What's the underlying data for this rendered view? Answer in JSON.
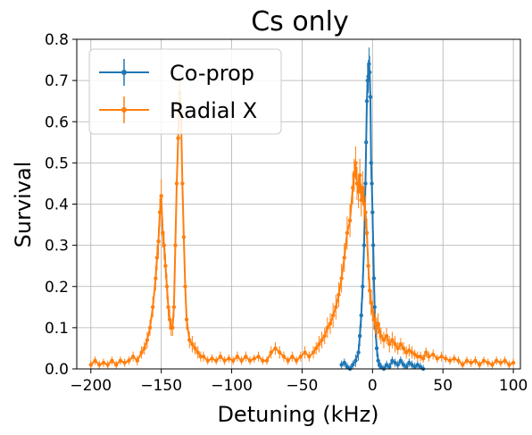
{
  "chart_data": {
    "type": "line",
    "title": "Cs only",
    "xlabel": "Detuning (kHz)",
    "ylabel": "Survival",
    "xlim": [
      -210,
      105
    ],
    "ylim": [
      0,
      0.8
    ],
    "xticks": [
      -200,
      -150,
      -100,
      -50,
      0,
      50,
      100
    ],
    "yticks": [
      0.0,
      0.1,
      0.2,
      0.3,
      0.4,
      0.5,
      0.6,
      0.7,
      0.8
    ],
    "xtick_labels": [
      "−200",
      "−150",
      "−100",
      "−50",
      "0",
      "50",
      "100"
    ],
    "ytick_labels": [
      "0.0",
      "0.1",
      "0.2",
      "0.3",
      "0.4",
      "0.5",
      "0.6",
      "0.7",
      "0.8"
    ],
    "grid": true,
    "legend_position": "top-left",
    "series": [
      {
        "name": "Co-prop",
        "color": "#1f77b4",
        "x": [
          -22,
          -20,
          -18,
          -16,
          -14,
          -12,
          -10,
          -9,
          -8,
          -7,
          -6,
          -5,
          -4.5,
          -4,
          -3.5,
          -3,
          -2.5,
          -2,
          -1.5,
          -1,
          -0.5,
          0,
          0.5,
          1,
          1.5,
          2,
          3,
          4,
          5,
          6,
          8,
          10,
          12,
          14,
          16,
          18,
          20,
          22,
          24,
          26,
          28,
          30,
          32,
          34,
          36
        ],
        "y": [
          0.01,
          0.015,
          0.005,
          0.0,
          0.01,
          0.02,
          0.04,
          0.08,
          0.13,
          0.2,
          0.3,
          0.45,
          0.55,
          0.65,
          0.7,
          0.71,
          0.74,
          0.72,
          0.66,
          0.5,
          0.45,
          0.38,
          0.3,
          0.22,
          0.15,
          0.1,
          0.05,
          0.02,
          0.01,
          0.005,
          0.0,
          0.01,
          0.005,
          0.02,
          0.015,
          0.01,
          0.02,
          0.01,
          0.005,
          0.015,
          0.01,
          0.005,
          0.01,
          0.005,
          0.0
        ],
        "err": [
          0.01,
          0.01,
          0.01,
          0.01,
          0.01,
          0.015,
          0.02,
          0.025,
          0.03,
          0.03,
          0.035,
          0.04,
          0.04,
          0.04,
          0.04,
          0.04,
          0.04,
          0.04,
          0.04,
          0.04,
          0.04,
          0.04,
          0.035,
          0.035,
          0.03,
          0.025,
          0.02,
          0.015,
          0.01,
          0.01,
          0.01,
          0.01,
          0.01,
          0.01,
          0.01,
          0.01,
          0.01,
          0.01,
          0.01,
          0.01,
          0.01,
          0.01,
          0.01,
          0.01,
          0.01
        ]
      },
      {
        "name": "Radial X",
        "color": "#ff7f0e",
        "x": [
          -200,
          -197,
          -194,
          -191,
          -188,
          -185,
          -182,
          -179,
          -176,
          -173,
          -170,
          -167,
          -164,
          -162,
          -160,
          -158,
          -156,
          -154,
          -153,
          -152,
          -151,
          -150,
          -149,
          -148,
          -147,
          -146,
          -145,
          -144,
          -143,
          -142,
          -141,
          -140,
          -139,
          -138,
          -137,
          -136,
          -135,
          -134,
          -133,
          -132,
          -130,
          -128,
          -126,
          -124,
          -122,
          -120,
          -117,
          -114,
          -111,
          -108,
          -105,
          -102,
          -99,
          -96,
          -93,
          -90,
          -87,
          -84,
          -81,
          -78,
          -75,
          -72,
          -69,
          -66,
          -63,
          -60,
          -57,
          -54,
          -51,
          -48,
          -45,
          -42,
          -40,
          -38,
          -36,
          -34,
          -32,
          -30,
          -28,
          -26,
          -24,
          -22,
          -20,
          -18,
          -16,
          -14,
          -13,
          -12,
          -11,
          -10,
          -9,
          -8,
          -7,
          -6,
          -5,
          -4,
          -3,
          -2,
          -1,
          0,
          1,
          2,
          3,
          4,
          5,
          6,
          8,
          10,
          12,
          14,
          16,
          18,
          20,
          22,
          24,
          26,
          28,
          30,
          32,
          34,
          36,
          38,
          40,
          43,
          46,
          49,
          52,
          55,
          58,
          61,
          64,
          67,
          70,
          73,
          76,
          79,
          82,
          85,
          88,
          91,
          94,
          97,
          100
        ],
        "y": [
          0.01,
          0.02,
          0.01,
          0.015,
          0.01,
          0.02,
          0.01,
          0.02,
          0.015,
          0.02,
          0.03,
          0.02,
          0.04,
          0.05,
          0.07,
          0.1,
          0.15,
          0.22,
          0.27,
          0.31,
          0.38,
          0.42,
          0.33,
          0.3,
          0.25,
          0.2,
          0.15,
          0.12,
          0.1,
          0.1,
          0.15,
          0.3,
          0.45,
          0.56,
          0.67,
          0.62,
          0.45,
          0.32,
          0.2,
          0.12,
          0.07,
          0.06,
          0.05,
          0.04,
          0.03,
          0.03,
          0.02,
          0.025,
          0.02,
          0.03,
          0.02,
          0.025,
          0.02,
          0.03,
          0.02,
          0.03,
          0.02,
          0.025,
          0.03,
          0.02,
          0.02,
          0.04,
          0.05,
          0.04,
          0.03,
          0.02,
          0.03,
          0.02,
          0.03,
          0.04,
          0.03,
          0.04,
          0.05,
          0.06,
          0.07,
          0.08,
          0.1,
          0.11,
          0.13,
          0.15,
          0.18,
          0.22,
          0.27,
          0.33,
          0.36,
          0.44,
          0.47,
          0.5,
          0.45,
          0.43,
          0.47,
          0.41,
          0.44,
          0.4,
          0.38,
          0.33,
          0.25,
          0.19,
          0.16,
          0.14,
          0.12,
          0.11,
          0.1,
          0.11,
          0.09,
          0.08,
          0.07,
          0.08,
          0.06,
          0.07,
          0.06,
          0.05,
          0.06,
          0.05,
          0.04,
          0.045,
          0.04,
          0.035,
          0.03,
          0.03,
          0.025,
          0.04,
          0.03,
          0.035,
          0.025,
          0.03,
          0.025,
          0.02,
          0.025,
          0.02,
          0.01,
          0.02,
          0.015,
          0.02,
          0.01,
          0.02,
          0.015,
          0.01,
          0.02,
          0.015,
          0.02,
          0.01,
          0.015
        ],
        "err": [
          0.01,
          0.01,
          0.01,
          0.01,
          0.01,
          0.01,
          0.01,
          0.01,
          0.01,
          0.01,
          0.012,
          0.012,
          0.015,
          0.015,
          0.02,
          0.02,
          0.025,
          0.03,
          0.03,
          0.035,
          0.035,
          0.04,
          0.035,
          0.035,
          0.03,
          0.03,
          0.025,
          0.025,
          0.02,
          0.02,
          0.025,
          0.03,
          0.035,
          0.04,
          0.04,
          0.04,
          0.035,
          0.035,
          0.03,
          0.025,
          0.02,
          0.02,
          0.015,
          0.015,
          0.012,
          0.012,
          0.01,
          0.01,
          0.01,
          0.012,
          0.01,
          0.01,
          0.01,
          0.012,
          0.01,
          0.012,
          0.01,
          0.01,
          0.012,
          0.01,
          0.01,
          0.015,
          0.015,
          0.015,
          0.012,
          0.01,
          0.012,
          0.01,
          0.012,
          0.015,
          0.012,
          0.015,
          0.015,
          0.02,
          0.02,
          0.02,
          0.025,
          0.025,
          0.03,
          0.03,
          0.03,
          0.035,
          0.035,
          0.04,
          0.04,
          0.04,
          0.04,
          0.04,
          0.04,
          0.04,
          0.04,
          0.04,
          0.04,
          0.04,
          0.04,
          0.035,
          0.035,
          0.03,
          0.03,
          0.025,
          0.025,
          0.025,
          0.025,
          0.025,
          0.02,
          0.02,
          0.02,
          0.02,
          0.02,
          0.02,
          0.02,
          0.015,
          0.015,
          0.015,
          0.015,
          0.015,
          0.015,
          0.012,
          0.012,
          0.012,
          0.01,
          0.012,
          0.012,
          0.012,
          0.01,
          0.012,
          0.01,
          0.01,
          0.01,
          0.01,
          0.01,
          0.01,
          0.01,
          0.01,
          0.01,
          0.01,
          0.01,
          0.01,
          0.01,
          0.01,
          0.01,
          0.01,
          0.01
        ]
      }
    ]
  }
}
